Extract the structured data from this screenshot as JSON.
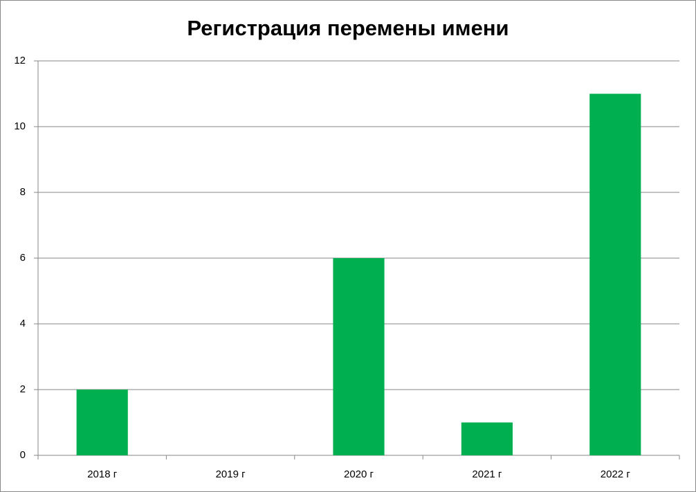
{
  "chart_data": {
    "type": "bar",
    "title": "Регистрация перемены имени",
    "categories": [
      "2018 г",
      "2019 г",
      "2020 г",
      "2021 г",
      "2022 г"
    ],
    "values": [
      2,
      0,
      6,
      1,
      11
    ],
    "color": "#00b050",
    "ylim": [
      0,
      12
    ],
    "yticks": [
      0,
      2,
      4,
      6,
      8,
      10,
      12
    ],
    "grid": true
  }
}
